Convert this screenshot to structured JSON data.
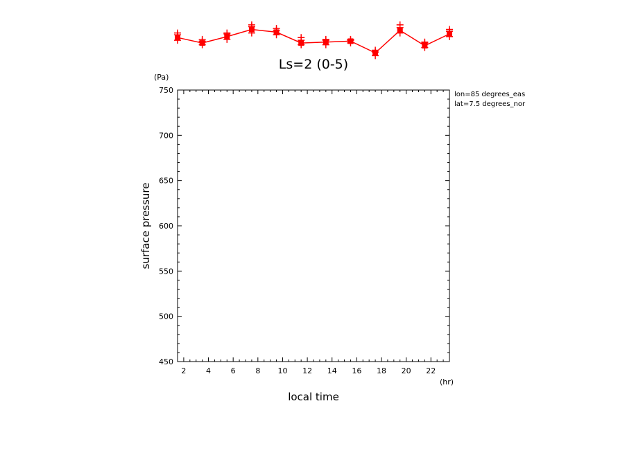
{
  "chart_data": {
    "type": "line",
    "title": "Ls=2 (0-5)",
    "xlabel": "local time",
    "ylabel": "surface pressure",
    "x_unit": "(hr)",
    "y_unit": "(Pa)",
    "annotations": [
      "lon=85 degrees_eas",
      "lat=7.5 degrees_nor"
    ],
    "xlim": [
      1.5,
      23.5
    ],
    "ylim": [
      450,
      750
    ],
    "x_ticks": [
      2,
      4,
      6,
      8,
      10,
      12,
      14,
      16,
      18,
      20,
      22
    ],
    "y_ticks": [
      450,
      500,
      550,
      600,
      650,
      700,
      750
    ],
    "series_color": "#ff0000",
    "series": [
      {
        "x": [
          1.5,
          3.5,
          5.5,
          7.5,
          9.5,
          11.5,
          13.5,
          15.5,
          17.5,
          19.5,
          21.5,
          23.5
        ],
        "values": [
          808,
          802,
          809,
          817,
          814,
          802,
          803,
          804,
          791,
          816,
          799,
          812
        ],
        "spread": [
          [
            805,
            811,
            813
          ],
          [
            800,
            804,
            806
          ],
          [
            806,
            812,
            813
          ],
          [
            813,
            820,
            822
          ],
          [
            811,
            816,
            818
          ],
          [
            800,
            805,
            808
          ],
          [
            800,
            805,
            806
          ],
          [
            802,
            805,
            806
          ],
          [
            788,
            792,
            794
          ],
          [
            813,
            819,
            822
          ],
          [
            797,
            802,
            803
          ],
          [
            809,
            815,
            817
          ]
        ]
      }
    ],
    "grid": false
  }
}
